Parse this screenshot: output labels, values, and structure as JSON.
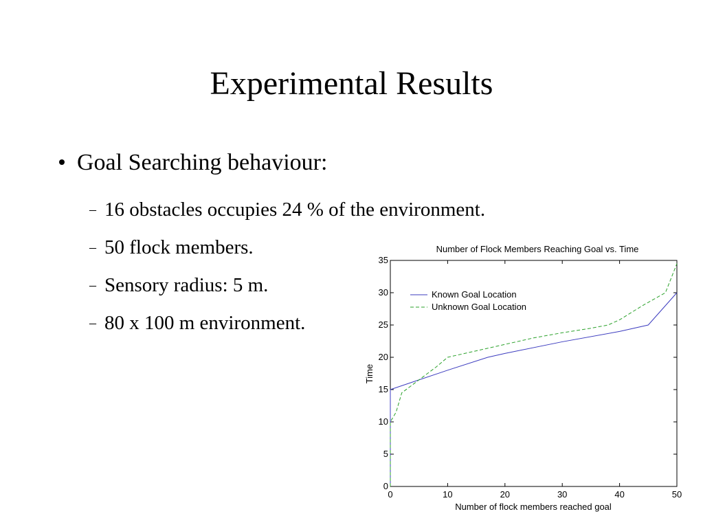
{
  "slide": {
    "title": "Experimental Results",
    "bullet": "Goal Searching behaviour:",
    "sub_items": [
      "16 obstacles occupies 24 % of the environment.",
      "50 flock members.",
      "Sensory radius: 5 m.",
      "80 x 100 m environment."
    ]
  },
  "chart_data": {
    "type": "line",
    "title": "Number  of Flock Members Reaching Goal vs. Time",
    "xlabel": "Number of flock members reached goal",
    "ylabel": "Time",
    "xlim": [
      0,
      50
    ],
    "ylim": [
      0,
      35
    ],
    "xticks": [
      0,
      10,
      20,
      30,
      40,
      50
    ],
    "yticks": [
      0,
      5,
      10,
      15,
      20,
      25,
      30,
      35
    ],
    "grid": false,
    "legend_position": "top-left",
    "series": [
      {
        "name": "Known Goal Location",
        "color": "#3b3bbf",
        "style": "solid",
        "x": [
          0,
          0,
          5,
          10,
          17,
          20,
          30,
          40,
          45,
          50
        ],
        "y": [
          0,
          15,
          16.5,
          18,
          20,
          20.6,
          22.4,
          24,
          25,
          30
        ]
      },
      {
        "name": "Unknown Goal Location",
        "color": "#2aa12a",
        "style": "dashed",
        "x": [
          0,
          0,
          1,
          2,
          5,
          8,
          10,
          15,
          20,
          25,
          30,
          35,
          38,
          40,
          44,
          48,
          50
        ],
        "y": [
          0,
          10,
          11.5,
          14.5,
          16.5,
          18.5,
          20,
          21,
          22,
          23,
          23.8,
          24.5,
          25,
          25.8,
          28,
          30,
          34.5
        ]
      }
    ]
  }
}
